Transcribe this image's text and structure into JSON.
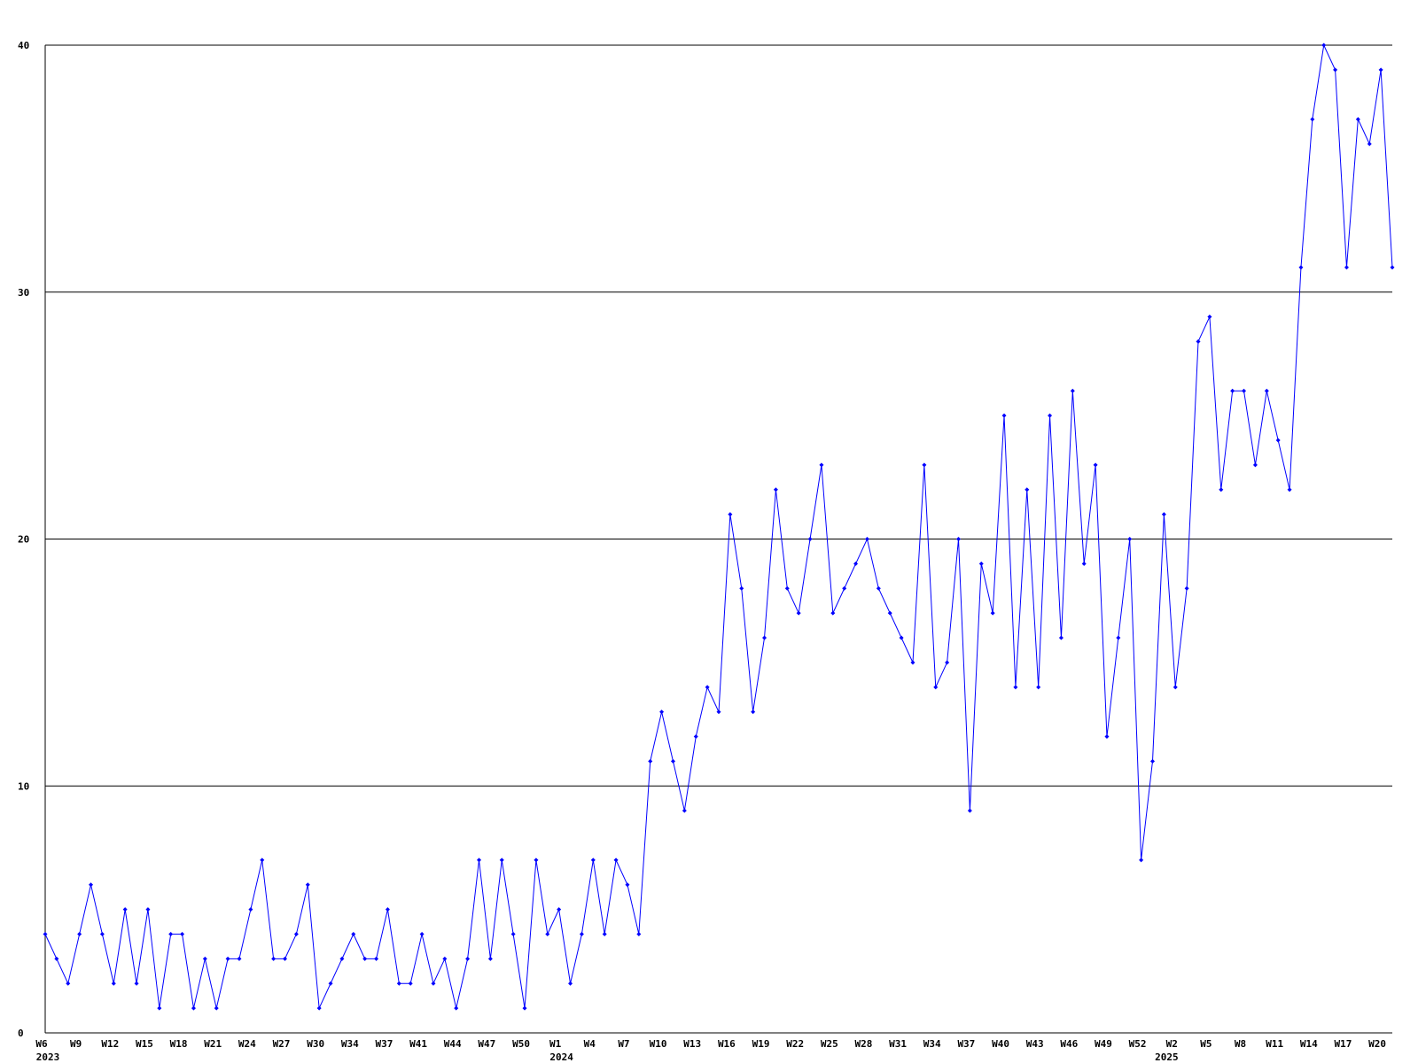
{
  "chart_data": {
    "type": "line",
    "categories": [
      "W6",
      null,
      null,
      "W9",
      null,
      null,
      "W12",
      null,
      null,
      "W15",
      null,
      null,
      "W18",
      null,
      null,
      "W21",
      null,
      null,
      "W24",
      null,
      null,
      "W27",
      null,
      null,
      "W30",
      null,
      null,
      "W34",
      null,
      null,
      "W37",
      null,
      null,
      "W41",
      null,
      null,
      "W44",
      null,
      null,
      "W47",
      null,
      null,
      "W50",
      null,
      null,
      "W1",
      null,
      null,
      "W4",
      null,
      null,
      "W7",
      null,
      null,
      "W10",
      null,
      null,
      "W13",
      null,
      null,
      "W16",
      null,
      null,
      "W19",
      null,
      null,
      "W22",
      null,
      null,
      "W25",
      null,
      null,
      "W28",
      null,
      null,
      "W31",
      null,
      null,
      "W34",
      null,
      null,
      "W37",
      null,
      null,
      "W40",
      null,
      null,
      "W43",
      null,
      null,
      "W46",
      null,
      null,
      "W49",
      null,
      null,
      "W52",
      null,
      null,
      "W2",
      null,
      null,
      "W5",
      null,
      null,
      "W8",
      null,
      null,
      "W11",
      null,
      null,
      "W14",
      null,
      null,
      "W17",
      null,
      null,
      "W20",
      null
    ],
    "category_groups": [
      {
        "label": "2023",
        "start": 0
      },
      {
        "label": "2024",
        "start": 45
      },
      {
        "label": "2025",
        "start": 98
      }
    ],
    "series": [
      {
        "color": "#0000ff",
        "values": [
          4,
          3,
          2,
          4,
          6,
          4,
          2,
          5,
          2,
          5,
          1,
          4,
          4,
          1,
          3,
          1,
          3,
          3,
          5,
          7,
          3,
          3,
          4,
          6,
          1,
          2,
          3,
          4,
          3,
          3,
          5,
          2,
          2,
          4,
          2,
          3,
          1,
          3,
          7,
          3,
          7,
          4,
          1,
          7,
          4,
          5,
          2,
          4,
          7,
          4,
          7,
          6,
          4,
          11,
          13,
          11,
          9,
          12,
          14,
          13,
          21,
          18,
          13,
          16,
          22,
          18,
          17,
          20,
          23,
          17,
          18,
          19,
          20,
          18,
          17,
          16,
          15,
          23,
          14,
          15,
          20,
          9,
          19,
          17,
          25,
          14,
          22,
          14,
          25,
          16,
          26,
          19,
          23,
          12,
          16,
          20,
          7,
          11,
          21,
          14,
          18,
          28,
          29,
          22,
          26,
          26,
          23,
          26,
          24,
          22,
          31,
          37,
          40,
          39,
          31,
          37,
          36,
          39,
          31
        ]
      }
    ],
    "ylim": [
      0,
      40
    ],
    "yticks": [
      0,
      10,
      20,
      30,
      40
    ],
    "grid": true
  }
}
